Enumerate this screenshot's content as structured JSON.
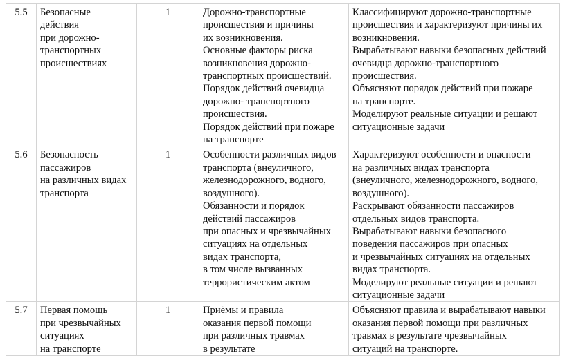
{
  "rows": [
    {
      "num": "5.5",
      "topic": [
        "Безопасные",
        "действия",
        "при    дорожно-",
        "транспортных",
        "происшествиях"
      ],
      "hours": "1",
      "content": [
        "Дорожно-транспортные",
        "происшествия и причины",
        "их возникновения.",
        "Основные факторы риска",
        "возникновения дорожно-",
        "транспортных происшествий.",
        "Порядок действий очевидца",
        "дорожно- транспортного",
        "происшествия.",
        "Порядок действий при пожаре",
        "на транспорте"
      ],
      "activities": [
        "Классифицируют дорожно-транспортные",
        "происшествия и характеризуют причины их",
        "возникновения.",
        "Вырабатывают навыки безопасных действий",
        "очевидца дорожно-транспортного",
        "происшествия.",
        "Объясняют порядок действий при пожаре",
        "на транспорте.",
        "Моделируют реальные ситуации и решают",
        "ситуационные задачи"
      ]
    },
    {
      "num": "5.6",
      "topic": [
        "Безопасность",
        "пассажиров",
        "на различных видах",
        "транспорта"
      ],
      "hours": "1",
      "content": [
        "Особенности различных видов",
        "транспорта (внеуличного,",
        "железнодорожного, водного,",
        "воздушного).",
        "Обязанности и порядок",
        "действий пассажиров",
        "при опасных и чрезвычайных",
        "ситуациях на отдельных",
        "видах транспорта,",
        "в том числе вызванных",
        "террористическим актом"
      ],
      "activities": [
        "Характеризуют особенности и опасности",
        "на различных видах транспорта",
        "(внеуличного, железнодорожного, водного,",
        "воздушного).",
        "Раскрывают обязанности пассажиров",
        "отдельных видов транспорта.",
        "Вырабатывают навыки безопасного",
        "поведения пассажиров при опасных",
        "и чрезвычайных ситуациях на отдельных",
        "видах транспорта.",
        "Моделируют реальные ситуации и решают",
        "ситуационные задачи"
      ]
    },
    {
      "num": "5.7",
      "topic": [
        "Первая помощь",
        "при чрезвычайных",
        "ситуациях",
        "на транспорте"
      ],
      "hours": "1",
      "content": [
        "Приёмы и правила",
        "оказания первой помощи",
        "при различных травмах",
        "в результате"
      ],
      "activities": [
        "Объясняют правила и вырабатывают навыки",
        "оказания первой помощи при различных",
        "травмах в результате чрезвычайных",
        "ситуаций на транспорте."
      ]
    }
  ]
}
